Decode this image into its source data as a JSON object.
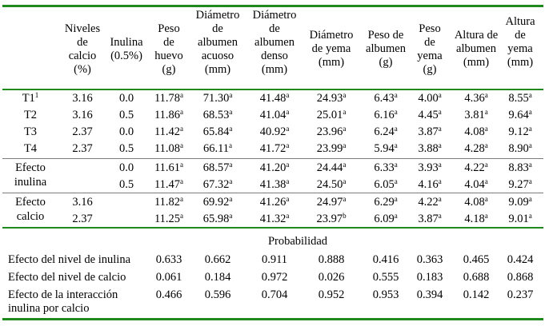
{
  "headers": [
    "Niveles\nde\ncalcio\n(%)",
    "Inulina\n(0.5%)",
    "Peso\nde\nhuevo\n(g)",
    "Diámetro\nde\nalbumen\nacuoso\n(mm)",
    "Diámetro\nde\nalbumen\ndenso\n(mm)",
    "Diámetro\nde yema\n(mm)",
    "Peso de\nalbumen\n(g)",
    "Peso\nde\nyema\n(g)",
    "Altura de\nalbumen\n(mm)",
    "Altura\nde\nyema\n(mm)"
  ],
  "treatments": [
    {
      "label": "T1",
      "label_sup": "1",
      "cells": [
        [
          "3.16",
          ""
        ],
        [
          "0.0",
          ""
        ],
        [
          "11.78",
          "a"
        ],
        [
          "71.30",
          "a"
        ],
        [
          "41.48",
          "a"
        ],
        [
          "24.93",
          "a"
        ],
        [
          "6.43",
          "a"
        ],
        [
          "4.00",
          "a"
        ],
        [
          "4.36",
          "a"
        ],
        [
          "8.55",
          "a"
        ]
      ]
    },
    {
      "label": "T2",
      "label_sup": "",
      "cells": [
        [
          "3.16",
          ""
        ],
        [
          "0.5",
          ""
        ],
        [
          "11.86",
          "a"
        ],
        [
          "68.53",
          "a"
        ],
        [
          "41.04",
          "a"
        ],
        [
          "25.01",
          "a"
        ],
        [
          "6.16",
          "a"
        ],
        [
          "4.45",
          "a"
        ],
        [
          "3.81",
          "a"
        ],
        [
          "9.64",
          "a"
        ]
      ]
    },
    {
      "label": "T3",
      "label_sup": "",
      "cells": [
        [
          "2.37",
          ""
        ],
        [
          "0.0",
          ""
        ],
        [
          "11.42",
          "a"
        ],
        [
          "65.84",
          "a"
        ],
        [
          "40.92",
          "a"
        ],
        [
          "23.96",
          "a"
        ],
        [
          "6.24",
          "a"
        ],
        [
          "3.87",
          "a"
        ],
        [
          "4.08",
          "a"
        ],
        [
          "9.12",
          "a"
        ]
      ]
    },
    {
      "label": "T4",
      "label_sup": "",
      "cells": [
        [
          "2.37",
          ""
        ],
        [
          "0.5",
          ""
        ],
        [
          "11.08",
          "a"
        ],
        [
          "66.11",
          "a"
        ],
        [
          "41.72",
          "a"
        ],
        [
          "23.99",
          "a"
        ],
        [
          "5.94",
          "a"
        ],
        [
          "3.88",
          "a"
        ],
        [
          "4.28",
          "a"
        ],
        [
          "8.90",
          "a"
        ]
      ]
    }
  ],
  "inulin_effect": {
    "label_lines": [
      "Efecto",
      "inulina"
    ],
    "rows": [
      [
        [
          "",
          ""
        ],
        [
          "0.0",
          ""
        ],
        [
          "11.61",
          "a"
        ],
        [
          "68.57",
          "a"
        ],
        [
          "41.20",
          "a"
        ],
        [
          "24.44",
          "a"
        ],
        [
          "6.33",
          "a"
        ],
        [
          "3.93",
          "a"
        ],
        [
          "4.22",
          "a"
        ],
        [
          "8.83",
          "a"
        ]
      ],
      [
        [
          "",
          ""
        ],
        [
          "0.5",
          ""
        ],
        [
          "11.47",
          "a"
        ],
        [
          "67.32",
          "a"
        ],
        [
          "41.38",
          "a"
        ],
        [
          "24.50",
          "a"
        ],
        [
          "6.05",
          "a"
        ],
        [
          "4.16",
          "a"
        ],
        [
          "4.04",
          "a"
        ],
        [
          "9.27",
          "a"
        ]
      ]
    ]
  },
  "calcium_effect": {
    "label_lines": [
      "Efecto",
      "calcio"
    ],
    "rows": [
      [
        [
          "3.16",
          ""
        ],
        [
          "",
          ""
        ],
        [
          "11.82",
          "a"
        ],
        [
          "69.92",
          "a"
        ],
        [
          "41.26",
          "a"
        ],
        [
          "24.97",
          "a"
        ],
        [
          "6.29",
          "a"
        ],
        [
          "4.22",
          "a"
        ],
        [
          "4.08",
          "a"
        ],
        [
          "9.09",
          "a"
        ]
      ],
      [
        [
          "2.37",
          ""
        ],
        [
          "",
          ""
        ],
        [
          "11.25",
          "a"
        ],
        [
          "65.98",
          "a"
        ],
        [
          "41.32",
          "a"
        ],
        [
          "23.97",
          "b"
        ],
        [
          "6.09",
          "a"
        ],
        [
          "3.87",
          "a"
        ],
        [
          "4.18",
          "a"
        ],
        [
          "9.01",
          "a"
        ]
      ]
    ]
  },
  "probability": {
    "title": "Probabilidad",
    "rows": [
      {
        "label": "Efecto del nivel de inulina",
        "values": [
          "0.633",
          "0.662",
          "0.911",
          "0.888",
          "0.416",
          "0.363",
          "0.465",
          "0.424"
        ]
      },
      {
        "label": "Efecto del nivel de calcio",
        "values": [
          "0.061",
          "0.184",
          "0.972",
          "0.026",
          "0.555",
          "0.183",
          "0.688",
          "0.868"
        ]
      },
      {
        "label": "Efecto de la interacción\ninulina por calcio",
        "values": [
          "0.466",
          "0.596",
          "0.704",
          "0.952",
          "0.953",
          "0.394",
          "0.142",
          "0.237"
        ]
      }
    ]
  }
}
